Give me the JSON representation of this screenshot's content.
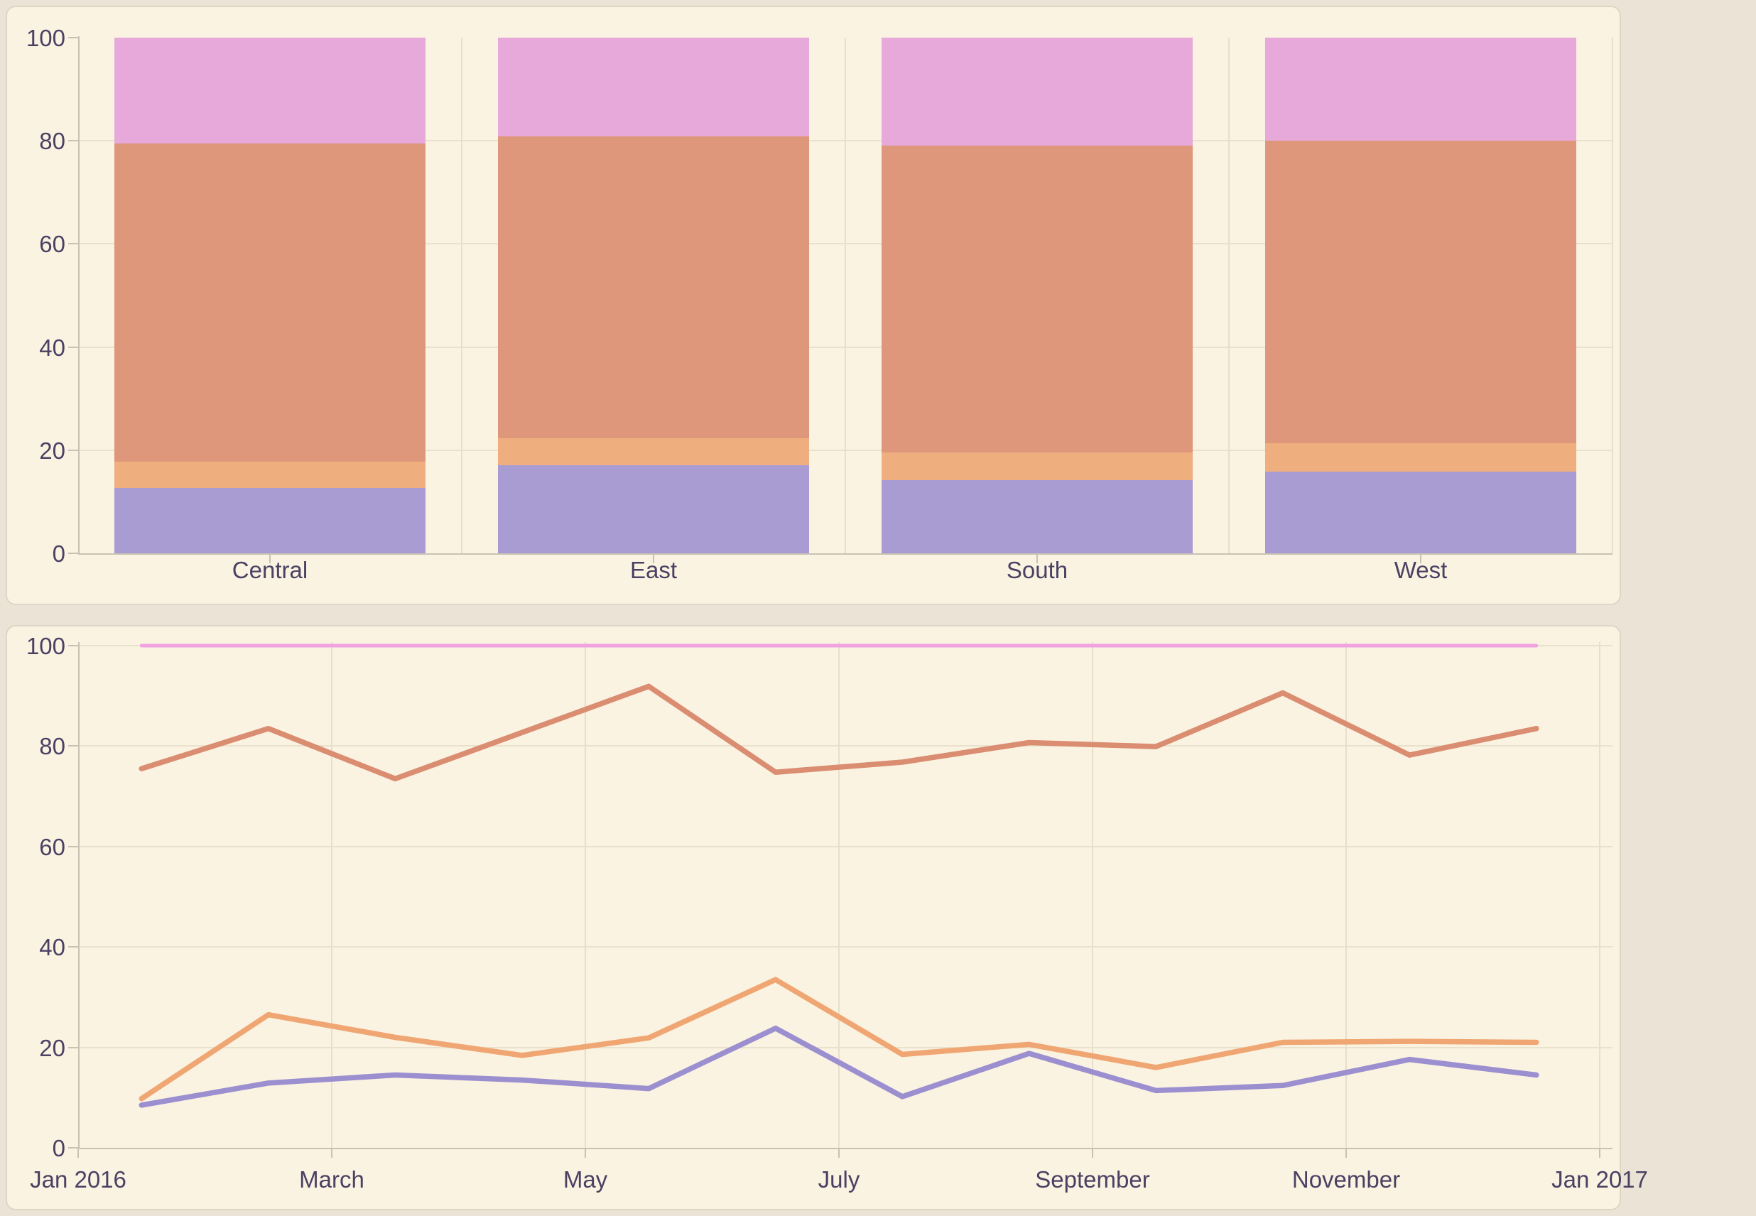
{
  "charts": {
    "bar_panel_name": "regional-percent-stacked-bar",
    "line_panel_name": "monthly-percent-line"
  },
  "colors": {
    "page_background": "#ebe4d6",
    "card_background": "#faf3e2",
    "card_border": "#ddd6c6",
    "grid": "#e9e1cc",
    "axis_line": "#c9c2b2",
    "axis_text": "#4a4163",
    "bar_purple": "#a89cd3",
    "bar_light_orange": "#efae7e",
    "bar_salmon": "#df977b",
    "bar_pink": "#e7a9da",
    "line_purple": "#9c8fd0",
    "line_light_orange": "#f0a672",
    "line_salmon": "#da8d70",
    "line_pink": "#f2a2e0"
  },
  "chart_data": [
    {
      "type": "bar",
      "stacked": true,
      "percent_of_total": true,
      "title": "",
      "xlabel": "",
      "ylabel": "",
      "categories": [
        "Central",
        "East",
        "South",
        "West"
      ],
      "series": [
        {
          "name": "purple-segment",
          "color": "#a89cd3",
          "values": [
            12.7,
            17.1,
            14.2,
            15.8
          ]
        },
        {
          "name": "light-orange-segment",
          "color": "#efae7e",
          "values": [
            5.1,
            5.2,
            5.3,
            5.5
          ]
        },
        {
          "name": "salmon-segment",
          "color": "#df977b",
          "values": [
            61.7,
            58.6,
            59.6,
            58.7
          ]
        },
        {
          "name": "pink-segment",
          "color": "#e7a9da",
          "values": [
            20.5,
            19.1,
            20.9,
            20.0
          ]
        }
      ],
      "ylim": [
        0,
        100
      ],
      "y_ticks": [
        100,
        80,
        60,
        40,
        20,
        0
      ],
      "grid": "horizontal-plus-column-dividers",
      "legend": "none"
    },
    {
      "type": "line",
      "title": "",
      "xlabel": "",
      "ylabel": "",
      "x_months": [
        "Jan 2016",
        "Feb 2016",
        "Mar 2016",
        "Apr 2016",
        "May 2016",
        "Jun 2016",
        "Jul 2016",
        "Aug 2016",
        "Sep 2016",
        "Oct 2016",
        "Nov 2016",
        "Dec 2016"
      ],
      "x_tick_labels": [
        "Jan 2016",
        "March",
        "May",
        "July",
        "September",
        "November",
        "Jan 2017"
      ],
      "series": [
        {
          "name": "pink-line",
          "color": "#f2a2e0",
          "values": [
            100,
            100,
            100,
            100,
            100,
            100,
            100,
            100,
            100,
            100,
            100,
            100
          ]
        },
        {
          "name": "salmon-line",
          "color": "#da8d70",
          "values": [
            75.5,
            83.5,
            73.5,
            82.7,
            91.9,
            74.8,
            76.8,
            80.7,
            79.9,
            90.6,
            78.2,
            83.5
          ]
        },
        {
          "name": "light-orange-line",
          "color": "#f0a672",
          "values": [
            9.8,
            26.5,
            22.0,
            18.4,
            21.9,
            33.5,
            18.6,
            20.6,
            16.0,
            21.0,
            21.2,
            21.0
          ]
        },
        {
          "name": "purple-line",
          "color": "#9c8fd0",
          "values": [
            8.5,
            12.9,
            14.5,
            13.5,
            11.8,
            23.8,
            10.2,
            18.8,
            11.4,
            12.4,
            17.6,
            14.5
          ]
        }
      ],
      "ylim": [
        0,
        100
      ],
      "y_ticks": [
        100,
        80,
        60,
        40,
        20,
        0
      ],
      "grid": "horizontal-and-labeled-month-verticals",
      "legend": "none"
    }
  ]
}
